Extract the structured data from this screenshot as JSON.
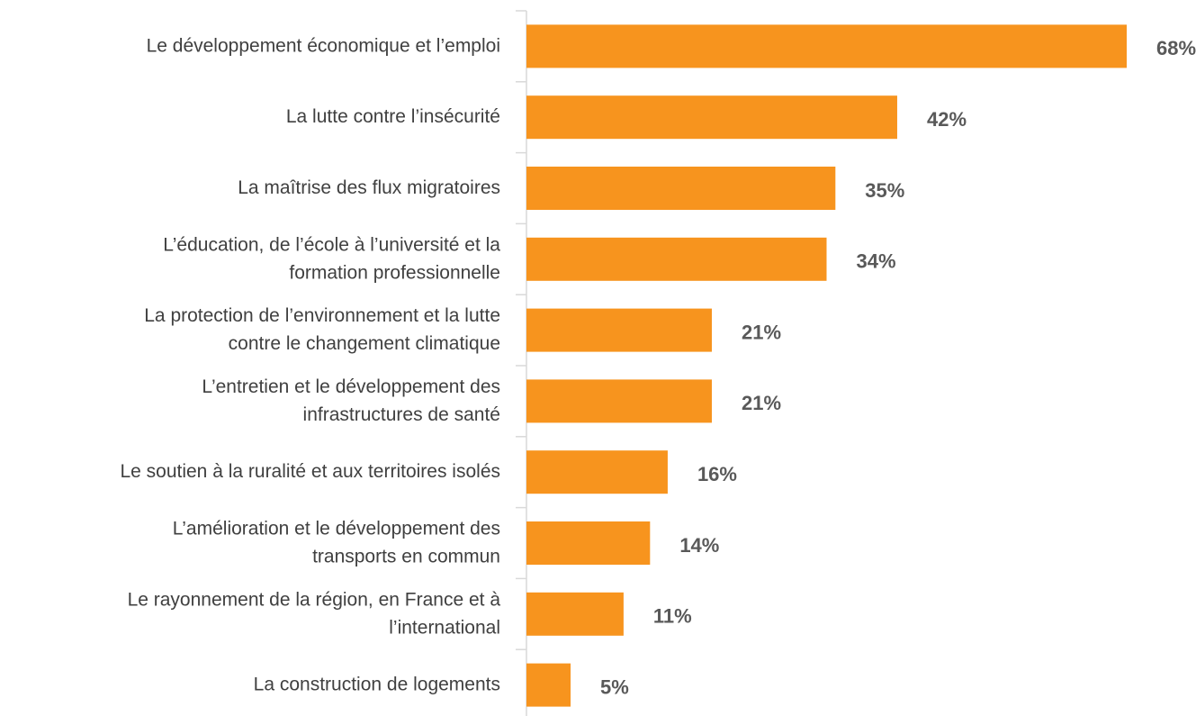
{
  "chart_data": {
    "type": "bar",
    "orientation": "horizontal",
    "categories": [
      "Le développement économique et l’emploi",
      "La lutte contre l’insécurité",
      "La maîtrise des flux migratoires",
      "L’éducation, de l’école à l’université et la\nformation professionnelle",
      "La protection de l’environnement et la lutte\ncontre le changement climatique",
      "L’entretien et le développement des\ninfrastructures de santé",
      "Le soutien à la ruralité et aux territoires isolés",
      "L’amélioration et le développement des\ntransports en commun",
      "Le rayonnement de la région, en France et à\nl’international",
      "La construction de logements"
    ],
    "values": [
      68,
      42,
      35,
      34,
      21,
      21,
      16,
      14,
      11,
      5
    ],
    "value_labels": [
      "68%",
      "42%",
      "35%",
      "34%",
      "21%",
      "21%",
      "16%",
      "14%",
      "11%",
      "5%"
    ],
    "color": "#f7941e",
    "xlim": [
      0,
      68
    ]
  }
}
